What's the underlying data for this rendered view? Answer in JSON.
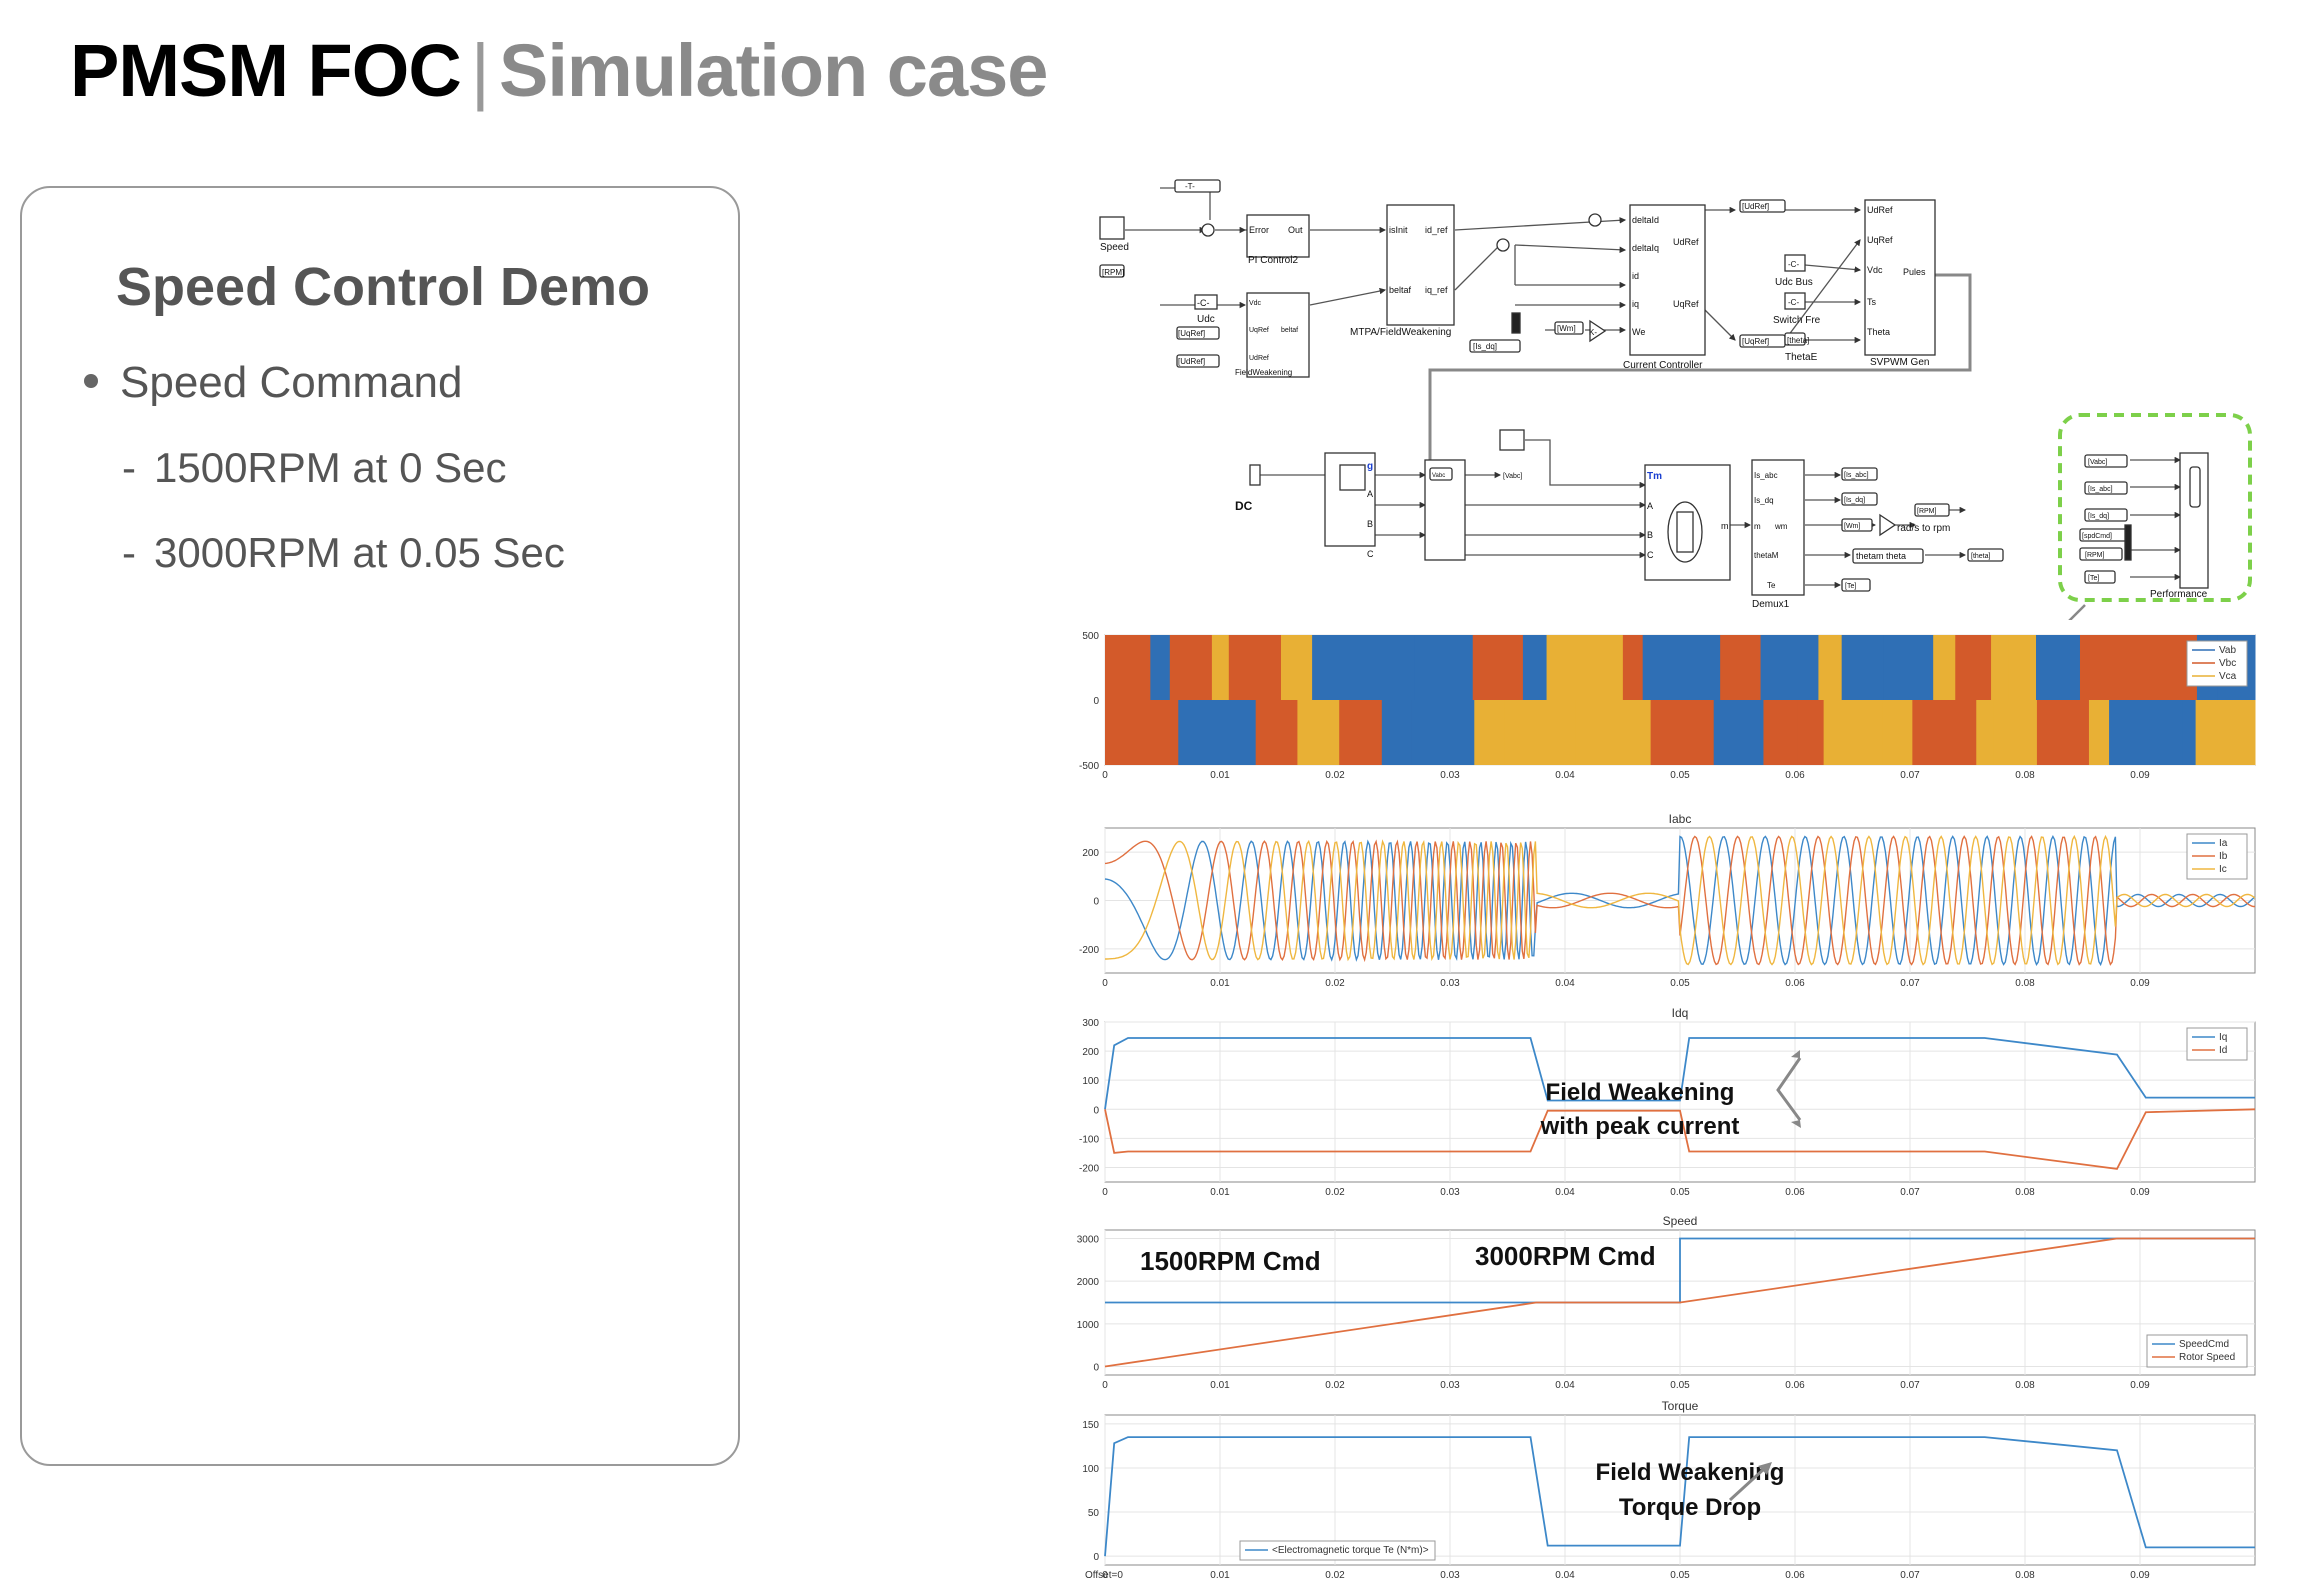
{
  "header": {
    "title_main": "PMSM FOC",
    "separator": "|",
    "title_sub": "Simulation case"
  },
  "card": {
    "title": "Speed Control Demo",
    "bullet": "Speed Command",
    "items": [
      "1500RPM at 0 Sec",
      "3000RPM at 0.05 Sec"
    ],
    "dash": "-"
  },
  "diagram": {
    "labels": {
      "speed": "Speed",
      "rpm": "[RPM]",
      "t_tag": "-T-",
      "c_const": "-C-",
      "udc": "Udc",
      "uqref_tag": "[UqRef]",
      "udref_tag": "[UdRef]",
      "pi_error": "Error",
      "pi_out": "Out",
      "pi_name": "PI Control2",
      "fw_vdc": "Vdc",
      "fw_uqref": "UqRef",
      "fw_udref": "UdRef",
      "fw_beltaf": "beltaf",
      "fw_name": "FieldWeakening",
      "mtpa_isinit": "isInit",
      "mtpa_idref": "id_ref",
      "mtpa_beltaf": "beltaf",
      "mtpa_iqref": "iq_ref",
      "mtpa_name": "MTPA/FieldWeakening",
      "isdq_tag": "[Is_dq]",
      "wm_tag": "[Wm]",
      "k_gain": "K-",
      "cc_deltaid": "deltaId",
      "cc_deltaiq": "deltaIq",
      "cc_id": "id",
      "cc_iq": "iq",
      "cc_we": "We",
      "cc_udref": "UdRef",
      "cc_uqref": "UqRef",
      "cc_name": "Current Controller",
      "udref_from": "[UdRef]",
      "uqref_from": "[UqRef]",
      "sv_udref": "UdRef",
      "sv_uqref": "UqRef",
      "sv_vdc": "Vdc",
      "sv_ts": "Ts",
      "sv_theta": "Theta",
      "sv_pules": "Pules",
      "sv_name": "SVPWM Gen",
      "udc_bus": "Udc Bus",
      "switch_fre": "Switch Fre",
      "theta_tag": "[theta]",
      "thetaE": "ThetaE",
      "dc": "DC",
      "inv_g": "g",
      "inv_a": "A",
      "inv_b": "B",
      "inv_c": "C",
      "vabc_tag": "[Vabc]",
      "vabc": "Vabc",
      "m_tm": "Tm",
      "m_a": "A",
      "m_b": "B",
      "m_c": "C",
      "m_m": "m",
      "d_isabc": "Is_abc",
      "d_isdq": "Is_dq",
      "d_wm": "wm",
      "d_m": "m",
      "d_thetam": "thetaM",
      "d_te": "Te",
      "d_name": "Demux1",
      "isabc_tag": "[Is_abc]",
      "isdq_tag2": "[Is_dq]",
      "wm_tag2": "[Wm]",
      "rpm_tag": "[RPM]",
      "theta_tag2": "[theta]",
      "te_tag": "[Te]",
      "rad2rpm": "rad/s to rpm",
      "thetam_theta": "thetam theta",
      "p_vabc": "[Vabc]",
      "p_isabc": "[Is_abc]",
      "p_isdq": "[Is_dq]",
      "p_spdcmd": "[spdCmd]",
      "p_rpm": "[RPM]",
      "p_te": "[Te]",
      "p_name": "Performance"
    }
  },
  "chart_data": [
    {
      "type": "line",
      "title": "",
      "xlim": [
        0,
        0.1
      ],
      "ylim": [
        -500,
        500
      ],
      "yticks": [
        "500",
        "0",
        "-500"
      ],
      "xticks": [
        "0",
        "0.01",
        "0.02",
        "0.03",
        "0.04",
        "0.05",
        "0.06",
        "0.07",
        "0.08",
        "0.09"
      ],
      "legend": [
        "Vab",
        "Vbc",
        "Vca"
      ],
      "legend_position": "top-right",
      "colors": [
        "#2f6fb5",
        "#d35a2a",
        "#e8b035"
      ]
    },
    {
      "type": "line",
      "title": "Iabc",
      "xlim": [
        0,
        0.1
      ],
      "ylim": [
        -300,
        300
      ],
      "yticks": [
        "200",
        "0",
        "-200"
      ],
      "xticks": [
        "0",
        "0.01",
        "0.02",
        "0.03",
        "0.04",
        "0.05",
        "0.06",
        "0.07",
        "0.08",
        "0.09"
      ],
      "legend": [
        "Ia",
        "Ib",
        "Ic"
      ],
      "legend_position": "top-right",
      "colors": [
        "#3d88c9",
        "#e07040",
        "#efb740"
      ]
    },
    {
      "type": "line",
      "title": "Idq",
      "xlim": [
        0,
        0.1
      ],
      "ylim": [
        -250,
        300
      ],
      "yticks": [
        "300",
        "200",
        "100",
        "0",
        "-100",
        "-200"
      ],
      "xticks": [
        "0",
        "0.01",
        "0.02",
        "0.03",
        "0.04",
        "0.05",
        "0.06",
        "0.07",
        "0.08",
        "0.09"
      ],
      "series": [
        {
          "name": "Iq",
          "x": [
            0,
            0.0008,
            0.002,
            0.037,
            0.0385,
            0.05,
            0.0508,
            0.0765,
            0.088,
            0.0905,
            0.1
          ],
          "y": [
            0,
            220,
            245,
            245,
            30,
            30,
            245,
            245,
            188,
            40,
            40
          ]
        },
        {
          "name": "Id",
          "x": [
            0,
            0.0008,
            0.002,
            0.037,
            0.0385,
            0.05,
            0.0508,
            0.0765,
            0.088,
            0.0905,
            0.1
          ],
          "y": [
            0,
            -150,
            -145,
            -145,
            -5,
            -5,
            -145,
            -145,
            -205,
            -10,
            0
          ]
        }
      ],
      "legend_position": "top-right",
      "colors": [
        "#3d88c9",
        "#e07040"
      ],
      "annotation": [
        "Field Weakening",
        "with peak current"
      ]
    },
    {
      "type": "line",
      "title": "Speed",
      "xlim": [
        0,
        0.1
      ],
      "ylim": [
        -200,
        3200
      ],
      "yticks": [
        "3000",
        "2000",
        "1000",
        "0"
      ],
      "xticks": [
        "0",
        "0.01",
        "0.02",
        "0.03",
        "0.04",
        "0.05",
        "0.06",
        "0.07",
        "0.08",
        "0.09"
      ],
      "series": [
        {
          "name": "SpeedCmd",
          "x": [
            0,
            0.05,
            0.05,
            0.1
          ],
          "y": [
            1500,
            1500,
            3000,
            3000
          ]
        },
        {
          "name": "Rotor Speed",
          "x": [
            0,
            0.0375,
            0.05,
            0.088,
            0.1
          ],
          "y": [
            0,
            1500,
            1500,
            3000,
            3000
          ]
        }
      ],
      "legend_position": "bottom-right",
      "colors": [
        "#3d88c9",
        "#e07040"
      ],
      "annotations": [
        "1500RPM Cmd",
        "3000RPM Cmd"
      ]
    },
    {
      "type": "line",
      "title": "Torque",
      "xlim": [
        0,
        0.1
      ],
      "ylim": [
        -10,
        160
      ],
      "yticks": [
        "150",
        "100",
        "50",
        "0"
      ],
      "xticks": [
        "0",
        "0.01",
        "0.02",
        "0.03",
        "0.04",
        "0.05",
        "0.06",
        "0.07",
        "0.08",
        "0.09"
      ],
      "series": [
        {
          "name": "<Electromagnetic torque Te (N*m)>",
          "x": [
            0,
            0.0008,
            0.002,
            0.037,
            0.0385,
            0.05,
            0.0508,
            0.0765,
            0.088,
            0.0905,
            0.1
          ],
          "y": [
            0,
            128,
            135,
            135,
            12,
            12,
            135,
            135,
            120,
            10,
            10
          ]
        }
      ],
      "legend_position": "bottom-left",
      "colors": [
        "#3d88c9"
      ],
      "annotation": [
        "Field Weakening",
        "Torque Drop"
      ],
      "footer": "Offset=0"
    }
  ]
}
